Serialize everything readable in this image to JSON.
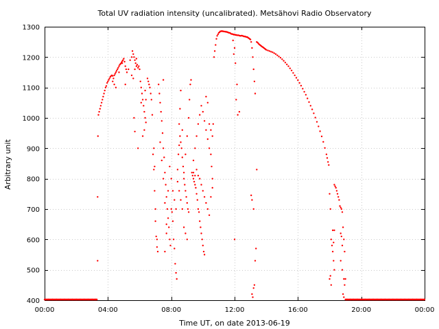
{
  "chart_data": {
    "type": "scatter",
    "title": "Total UV radiation intensity (uncalibrated). Metsähovi Radio Observatory",
    "xlabel": "Time UT, on date 2013-06-19",
    "ylabel": "Arbitrary unit",
    "xlim_hours": [
      0,
      24
    ],
    "ylim": [
      400,
      1300
    ],
    "x_ticks": [
      {
        "hour": 0,
        "label": "00:00"
      },
      {
        "hour": 4,
        "label": "04:00"
      },
      {
        "hour": 8,
        "label": "08:00"
      },
      {
        "hour": 12,
        "label": "12:00"
      },
      {
        "hour": 16,
        "label": "16:00"
      },
      {
        "hour": 20,
        "label": "20:00"
      },
      {
        "hour": 24,
        "label": "00:00"
      }
    ],
    "y_ticks": [
      400,
      500,
      600,
      700,
      800,
      900,
      1000,
      1100,
      1200,
      1300
    ],
    "grid": true,
    "legend": "none",
    "series_color": "#ff0000",
    "points": [
      [
        0.0,
        400
      ],
      [
        0.25,
        400
      ],
      [
        0.5,
        400
      ],
      [
        0.75,
        400
      ],
      [
        1.0,
        400
      ],
      [
        1.25,
        400
      ],
      [
        1.5,
        400
      ],
      [
        1.75,
        400
      ],
      [
        2.0,
        400
      ],
      [
        2.25,
        400
      ],
      [
        2.5,
        400
      ],
      [
        2.75,
        400
      ],
      [
        3.0,
        400
      ],
      [
        3.2,
        400
      ],
      [
        3.3,
        400
      ],
      [
        3.35,
        530
      ],
      [
        3.35,
        740
      ],
      [
        3.37,
        940
      ],
      [
        3.4,
        1010
      ],
      [
        3.45,
        1020
      ],
      [
        3.5,
        1030
      ],
      [
        3.55,
        1040
      ],
      [
        3.6,
        1050
      ],
      [
        3.65,
        1060
      ],
      [
        3.7,
        1070
      ],
      [
        3.75,
        1080
      ],
      [
        3.8,
        1090
      ],
      [
        3.85,
        1100
      ],
      [
        3.9,
        1105
      ],
      [
        3.95,
        1115
      ],
      [
        4.0,
        1120
      ],
      [
        4.05,
        1125
      ],
      [
        4.1,
        1130
      ],
      [
        4.15,
        1135
      ],
      [
        4.2,
        1138
      ],
      [
        4.25,
        1140
      ],
      [
        4.3,
        1138
      ],
      [
        4.35,
        1130
      ],
      [
        4.4,
        1140
      ],
      [
        4.45,
        1145
      ],
      [
        4.5,
        1150
      ],
      [
        4.55,
        1155
      ],
      [
        4.6,
        1160
      ],
      [
        4.65,
        1165
      ],
      [
        4.7,
        1170
      ],
      [
        4.75,
        1175
      ],
      [
        4.8,
        1178
      ],
      [
        4.85,
        1182
      ],
      [
        4.9,
        1186
      ],
      [
        4.95,
        1190
      ],
      [
        5.0,
        1195
      ],
      [
        5.05,
        1185
      ],
      [
        5.1,
        1170
      ],
      [
        5.15,
        1160
      ],
      [
        4.3,
        1120
      ],
      [
        4.4,
        1110
      ],
      [
        4.5,
        1100
      ],
      [
        4.7,
        1150
      ],
      [
        4.9,
        1180
      ],
      [
        5.1,
        1110
      ],
      [
        5.2,
        1150
      ],
      [
        5.3,
        1160
      ],
      [
        5.4,
        1190
      ],
      [
        5.5,
        1200
      ],
      [
        5.55,
        1220
      ],
      [
        5.6,
        1210
      ],
      [
        5.65,
        1200
      ],
      [
        5.7,
        1190
      ],
      [
        5.75,
        1180
      ],
      [
        5.8,
        1170
      ],
      [
        5.85,
        1175
      ],
      [
        5.9,
        1165
      ],
      [
        5.95,
        1170
      ],
      [
        6.0,
        1160
      ],
      [
        5.5,
        1140
      ],
      [
        5.6,
        1130
      ],
      [
        5.7,
        1160
      ],
      [
        5.8,
        1195
      ],
      [
        5.65,
        1000
      ],
      [
        5.7,
        955
      ],
      [
        5.9,
        900
      ],
      [
        6.05,
        1120
      ],
      [
        6.1,
        1100
      ],
      [
        6.15,
        1080
      ],
      [
        6.2,
        1060
      ],
      [
        6.25,
        1040
      ],
      [
        6.3,
        1020
      ],
      [
        6.35,
        1000
      ],
      [
        6.4,
        985
      ],
      [
        6.1,
        1050
      ],
      [
        6.2,
        940
      ],
      [
        6.3,
        960
      ],
      [
        6.35,
        1090
      ],
      [
        6.4,
        1060
      ],
      [
        6.5,
        1130
      ],
      [
        6.55,
        1120
      ],
      [
        6.6,
        1110
      ],
      [
        6.65,
        1100
      ],
      [
        6.7,
        1080
      ],
      [
        6.75,
        1060
      ],
      [
        6.8,
        1010
      ],
      [
        6.85,
        880
      ],
      [
        6.9,
        830
      ],
      [
        6.95,
        760
      ],
      [
        7.0,
        660
      ],
      [
        7.05,
        610
      ],
      [
        7.1,
        575
      ],
      [
        7.15,
        560
      ],
      [
        6.9,
        900
      ],
      [
        6.95,
        840
      ],
      [
        7.0,
        700
      ],
      [
        7.1,
        600
      ],
      [
        7.2,
        1110
      ],
      [
        7.25,
        1080
      ],
      [
        7.3,
        1050
      ],
      [
        7.35,
        1020
      ],
      [
        7.4,
        990
      ],
      [
        7.45,
        950
      ],
      [
        7.5,
        900
      ],
      [
        7.55,
        870
      ],
      [
        7.6,
        820
      ],
      [
        7.65,
        780
      ],
      [
        7.7,
        740
      ],
      [
        7.75,
        700
      ],
      [
        7.8,
        670
      ],
      [
        7.85,
        640
      ],
      [
        7.9,
        600
      ],
      [
        7.95,
        580
      ],
      [
        7.3,
        920
      ],
      [
        7.4,
        860
      ],
      [
        7.5,
        800
      ],
      [
        7.6,
        720
      ],
      [
        7.7,
        650
      ],
      [
        7.8,
        760
      ],
      [
        7.9,
        840
      ],
      [
        7.5,
        1125
      ],
      [
        7.6,
        560
      ],
      [
        7.7,
        620
      ],
      [
        8.0,
        700
      ],
      [
        8.05,
        690
      ],
      [
        8.1,
        660
      ],
      [
        8.15,
        600
      ],
      [
        8.2,
        570
      ],
      [
        8.25,
        520
      ],
      [
        8.3,
        490
      ],
      [
        8.35,
        470
      ],
      [
        8.0,
        800
      ],
      [
        8.1,
        760
      ],
      [
        8.2,
        730
      ],
      [
        8.3,
        700
      ],
      [
        8.4,
        830
      ],
      [
        8.45,
        880
      ],
      [
        8.5,
        910
      ],
      [
        8.55,
        940
      ],
      [
        8.6,
        920
      ],
      [
        8.65,
        900
      ],
      [
        8.7,
        870
      ],
      [
        8.75,
        840
      ],
      [
        8.8,
        800
      ],
      [
        8.85,
        780
      ],
      [
        8.9,
        760
      ],
      [
        8.95,
        740
      ],
      [
        9.0,
        720
      ],
      [
        9.05,
        700
      ],
      [
        9.1,
        690
      ],
      [
        8.5,
        980
      ],
      [
        8.55,
        1030
      ],
      [
        8.6,
        1090
      ],
      [
        8.7,
        960
      ],
      [
        8.8,
        820
      ],
      [
        8.9,
        880
      ],
      [
        9.0,
        940
      ],
      [
        9.1,
        1000
      ],
      [
        9.15,
        1060
      ],
      [
        9.2,
        1110
      ],
      [
        9.25,
        1125
      ],
      [
        8.4,
        790
      ],
      [
        8.5,
        760
      ],
      [
        8.6,
        730
      ],
      [
        8.7,
        700
      ],
      [
        8.8,
        640
      ],
      [
        8.9,
        620
      ],
      [
        9.0,
        600
      ],
      [
        9.3,
        820
      ],
      [
        9.35,
        810
      ],
      [
        9.4,
        800
      ],
      [
        9.45,
        790
      ],
      [
        9.5,
        780
      ],
      [
        9.55,
        770
      ],
      [
        9.6,
        750
      ],
      [
        9.65,
        730
      ],
      [
        9.7,
        700
      ],
      [
        9.75,
        690
      ],
      [
        9.8,
        660
      ],
      [
        9.85,
        640
      ],
      [
        9.9,
        620
      ],
      [
        9.95,
        600
      ],
      [
        10.0,
        580
      ],
      [
        10.05,
        560
      ],
      [
        10.1,
        550
      ],
      [
        9.4,
        860
      ],
      [
        9.5,
        900
      ],
      [
        9.6,
        940
      ],
      [
        9.7,
        980
      ],
      [
        9.8,
        1010
      ],
      [
        9.9,
        1040
      ],
      [
        10.0,
        1020
      ],
      [
        10.1,
        990
      ],
      [
        10.2,
        960
      ],
      [
        10.3,
        930
      ],
      [
        10.4,
        900
      ],
      [
        10.5,
        880
      ],
      [
        10.55,
        840
      ],
      [
        10.6,
        800
      ],
      [
        9.4,
        820
      ],
      [
        9.5,
        810
      ],
      [
        9.6,
        830
      ],
      [
        9.7,
        810
      ],
      [
        9.8,
        800
      ],
      [
        9.9,
        780
      ],
      [
        10.0,
        760
      ],
      [
        10.1,
        740
      ],
      [
        10.2,
        720
      ],
      [
        10.3,
        700
      ],
      [
        10.4,
        680
      ],
      [
        10.5,
        740
      ],
      [
        10.6,
        770
      ],
      [
        10.2,
        1070
      ],
      [
        10.3,
        1050
      ],
      [
        10.4,
        980
      ],
      [
        10.5,
        960
      ],
      [
        10.6,
        940
      ],
      [
        10.65,
        980
      ],
      [
        10.7,
        1200
      ],
      [
        10.75,
        1220
      ],
      [
        10.8,
        1240
      ],
      [
        10.85,
        1260
      ],
      [
        10.9,
        1270
      ],
      [
        10.95,
        1275
      ],
      [
        11.0,
        1280
      ],
      [
        11.05,
        1282
      ],
      [
        11.1,
        1285
      ],
      [
        11.15,
        1285
      ],
      [
        11.2,
        1286
      ],
      [
        11.25,
        1285
      ],
      [
        11.3,
        1285
      ],
      [
        11.35,
        1284
      ],
      [
        11.4,
        1284
      ],
      [
        11.45,
        1283
      ],
      [
        11.5,
        1283
      ],
      [
        11.55,
        1282
      ],
      [
        11.6,
        1281
      ],
      [
        11.65,
        1280
      ],
      [
        11.7,
        1280
      ],
      [
        11.75,
        1278
      ],
      [
        11.8,
        1276
      ],
      [
        11.85,
        1276
      ],
      [
        11.9,
        1275
      ],
      [
        11.95,
        1274
      ],
      [
        12.0,
        1274
      ],
      [
        12.05,
        1273
      ],
      [
        12.1,
        1273
      ],
      [
        12.15,
        1272
      ],
      [
        12.2,
        1272
      ],
      [
        12.25,
        1272
      ],
      [
        12.3,
        1271
      ],
      [
        12.35,
        1270
      ],
      [
        12.4,
        1270
      ],
      [
        12.45,
        1271
      ],
      [
        12.5,
        1270
      ],
      [
        12.55,
        1269
      ],
      [
        12.6,
        1268
      ],
      [
        12.65,
        1268
      ],
      [
        12.7,
        1267
      ],
      [
        12.75,
        1266
      ],
      [
        12.8,
        1266
      ],
      [
        12.85,
        1264
      ],
      [
        12.9,
        1262
      ],
      [
        12.95,
        1260
      ],
      [
        13.0,
        1258
      ],
      [
        11.9,
        1255
      ],
      [
        12.0,
        1230
      ],
      [
        11.95,
        1210
      ],
      [
        12.05,
        1180
      ],
      [
        12.1,
        1060
      ],
      [
        12.15,
        1110
      ],
      [
        12.2,
        1010
      ],
      [
        12.3,
        1020
      ],
      [
        12.0,
        600
      ],
      [
        13.05,
        1250
      ],
      [
        13.1,
        1230
      ],
      [
        13.15,
        1200
      ],
      [
        13.2,
        1160
      ],
      [
        13.25,
        1120
      ],
      [
        13.3,
        1080
      ],
      [
        13.05,
        745
      ],
      [
        13.1,
        730
      ],
      [
        13.2,
        700
      ],
      [
        13.1,
        420
      ],
      [
        13.15,
        410
      ],
      [
        13.2,
        440
      ],
      [
        13.25,
        450
      ],
      [
        13.3,
        530
      ],
      [
        13.35,
        570
      ],
      [
        13.4,
        830
      ],
      [
        13.4,
        1250
      ],
      [
        13.45,
        1248
      ],
      [
        13.5,
        1245
      ],
      [
        13.55,
        1242
      ],
      [
        13.6,
        1240
      ],
      [
        13.65,
        1238
      ],
      [
        13.7,
        1236
      ],
      [
        13.75,
        1234
      ],
      [
        13.8,
        1232
      ],
      [
        13.85,
        1230
      ],
      [
        13.9,
        1228
      ],
      [
        13.95,
        1226
      ],
      [
        14.0,
        1224
      ],
      [
        14.1,
        1222
      ],
      [
        14.2,
        1220
      ],
      [
        14.3,
        1218
      ],
      [
        14.4,
        1216
      ],
      [
        14.5,
        1213
      ],
      [
        14.6,
        1210
      ],
      [
        14.7,
        1206
      ],
      [
        14.8,
        1202
      ],
      [
        14.9,
        1198
      ],
      [
        15.0,
        1193
      ],
      [
        15.1,
        1188
      ],
      [
        15.2,
        1182
      ],
      [
        15.3,
        1176
      ],
      [
        15.4,
        1170
      ],
      [
        15.5,
        1163
      ],
      [
        15.6,
        1156
      ],
      [
        15.7,
        1148
      ],
      [
        15.8,
        1140
      ],
      [
        15.9,
        1132
      ],
      [
        16.0,
        1124
      ],
      [
        16.1,
        1115
      ],
      [
        16.2,
        1106
      ],
      [
        16.3,
        1096
      ],
      [
        16.4,
        1086
      ],
      [
        16.5,
        1076
      ],
      [
        16.6,
        1064
      ],
      [
        16.7,
        1052
      ],
      [
        16.8,
        1040
      ],
      [
        16.9,
        1028
      ],
      [
        17.0,
        1015
      ],
      [
        17.1,
        1001
      ],
      [
        17.2,
        987
      ],
      [
        17.3,
        972
      ],
      [
        17.4,
        956
      ],
      [
        17.5,
        939
      ],
      [
        17.6,
        921
      ],
      [
        17.7,
        901
      ],
      [
        17.8,
        880
      ],
      [
        17.85,
        868
      ],
      [
        17.9,
        855
      ],
      [
        17.95,
        845
      ],
      [
        18.0,
        750
      ],
      [
        18.05,
        700
      ],
      [
        18.1,
        600
      ],
      [
        18.15,
        580
      ],
      [
        18.2,
        560
      ],
      [
        18.25,
        530
      ],
      [
        18.3,
        500
      ],
      [
        18.0,
        470
      ],
      [
        18.05,
        480
      ],
      [
        18.1,
        450
      ],
      [
        18.2,
        630
      ],
      [
        18.25,
        590
      ],
      [
        18.3,
        630
      ],
      [
        18.3,
        780
      ],
      [
        18.35,
        775
      ],
      [
        18.4,
        770
      ],
      [
        18.45,
        760
      ],
      [
        18.5,
        750
      ],
      [
        18.55,
        740
      ],
      [
        18.6,
        730
      ],
      [
        18.65,
        710
      ],
      [
        18.7,
        705
      ],
      [
        18.75,
        700
      ],
      [
        18.8,
        690
      ],
      [
        18.7,
        620
      ],
      [
        18.75,
        610
      ],
      [
        18.8,
        580
      ],
      [
        18.85,
        640
      ],
      [
        18.9,
        600
      ],
      [
        18.95,
        560
      ],
      [
        18.7,
        530
      ],
      [
        18.8,
        500
      ],
      [
        18.9,
        470
      ],
      [
        18.95,
        450
      ],
      [
        19.0,
        470
      ],
      [
        18.85,
        420
      ],
      [
        18.9,
        410
      ],
      [
        19.0,
        400
      ],
      [
        19.1,
        400
      ],
      [
        19.3,
        400
      ],
      [
        19.5,
        400
      ],
      [
        19.75,
        400
      ],
      [
        20.0,
        400
      ],
      [
        20.25,
        400
      ],
      [
        20.5,
        400
      ],
      [
        20.75,
        400
      ],
      [
        21.0,
        400
      ],
      [
        21.25,
        400
      ],
      [
        21.5,
        400
      ],
      [
        21.75,
        400
      ],
      [
        22.0,
        400
      ],
      [
        22.25,
        400
      ],
      [
        22.5,
        400
      ],
      [
        22.75,
        400
      ],
      [
        23.0,
        400
      ],
      [
        23.25,
        400
      ],
      [
        23.5,
        400
      ],
      [
        23.75,
        400
      ],
      [
        24.0,
        400
      ]
    ]
  }
}
